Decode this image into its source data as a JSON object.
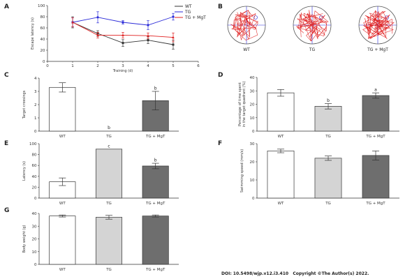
{
  "footer": {
    "doi": "DOI: 10.5498/wjp.v12.i3.410",
    "copyright": "Copyright ©The Author(s) 2022."
  },
  "colors": {
    "wt": "#ffffff",
    "tg": "#d4d4d4",
    "mgt": "#6e6e6e",
    "line_wt": "#333333",
    "line_tg": "#2a2ad8",
    "line_mgt": "#e02020",
    "err": "#333333"
  },
  "chart_data": [
    {
      "panel": "A",
      "type": "line",
      "title": "",
      "xlabel": "Training (d)",
      "ylabel": "Escape latency (s)",
      "xlim": [
        0,
        6
      ],
      "ylim": [
        0,
        100
      ],
      "xticks": [
        0,
        1,
        2,
        3,
        4,
        5,
        6
      ],
      "yticks": [
        0,
        20,
        40,
        60,
        80,
        100
      ],
      "x": [
        1,
        2,
        3,
        4,
        5
      ],
      "legend": "top-right",
      "series": [
        {
          "name": "WT",
          "color": "#333333",
          "values": [
            70,
            50,
            33,
            38,
            30
          ],
          "errors": [
            10,
            5,
            6,
            6,
            8
          ]
        },
        {
          "name": "TG",
          "color": "#2a2ad8",
          "values": [
            70,
            79,
            70,
            65,
            80
          ],
          "errors": [
            8,
            10,
            3,
            8,
            6
          ]
        },
        {
          "name": "TG + MgT",
          "color": "#e02020",
          "values": [
            70,
            47,
            47,
            46,
            43
          ],
          "errors": [
            8,
            5,
            5,
            5,
            8
          ]
        }
      ]
    },
    {
      "panel": "B",
      "type": "image",
      "labels": [
        "WT",
        "TG",
        "TG + MgT"
      ]
    },
    {
      "panel": "C",
      "type": "bar",
      "ylabel": "Target crossings",
      "ylim": [
        0,
        4
      ],
      "yticks": [
        0,
        1,
        2,
        3,
        4
      ],
      "categories": [
        "WT",
        "TG",
        "TG + MgT"
      ],
      "values": [
        3.3,
        0,
        2.3
      ],
      "errors": [
        0.35,
        0,
        0.7
      ],
      "annotations": [
        "",
        "b",
        "b"
      ]
    },
    {
      "panel": "D",
      "type": "bar",
      "ylabel": "Percentage of time spent in the target quadrant (%)",
      "ylabel_lines": [
        "Percentage of time spent",
        "in the target quadrant (%)"
      ],
      "ylim": [
        0,
        40
      ],
      "yticks": [
        0,
        10,
        20,
        30,
        40
      ],
      "categories": [
        "WT",
        "TG",
        "TG + MgT"
      ],
      "values": [
        28.5,
        18.5,
        26.5
      ],
      "errors": [
        2.5,
        2,
        2
      ],
      "annotations": [
        "",
        "b",
        "a"
      ]
    },
    {
      "panel": "E",
      "type": "bar",
      "ylabel": "Latency (s)",
      "ylim": [
        0,
        100
      ],
      "yticks": [
        0,
        20,
        40,
        60,
        80,
        100
      ],
      "categories": [
        "WT",
        "TG",
        "TG + MgT"
      ],
      "values": [
        30,
        90,
        59
      ],
      "errors": [
        7,
        0,
        5
      ],
      "annotations": [
        "",
        "c",
        "b"
      ]
    },
    {
      "panel": "F",
      "type": "bar",
      "ylabel": "Swimming speed (mm/s)",
      "ylim": [
        0,
        30
      ],
      "yticks": [
        0,
        10,
        20,
        30
      ],
      "categories": [
        "WT",
        "TG",
        "TG + MgT"
      ],
      "values": [
        26,
        22,
        23.5
      ],
      "errors": [
        1,
        1.2,
        2.5
      ],
      "annotations": [
        "",
        "",
        ""
      ]
    },
    {
      "panel": "G",
      "type": "bar",
      "ylabel": "Body weight (g)",
      "ylim": [
        0,
        40
      ],
      "yticks": [
        0,
        10,
        20,
        30,
        40
      ],
      "categories": [
        "WT",
        "TG",
        "TG + MgT"
      ],
      "values": [
        38,
        37,
        38
      ],
      "errors": [
        0.8,
        1.5,
        0.8
      ],
      "annotations": [
        "",
        "",
        ""
      ]
    }
  ]
}
